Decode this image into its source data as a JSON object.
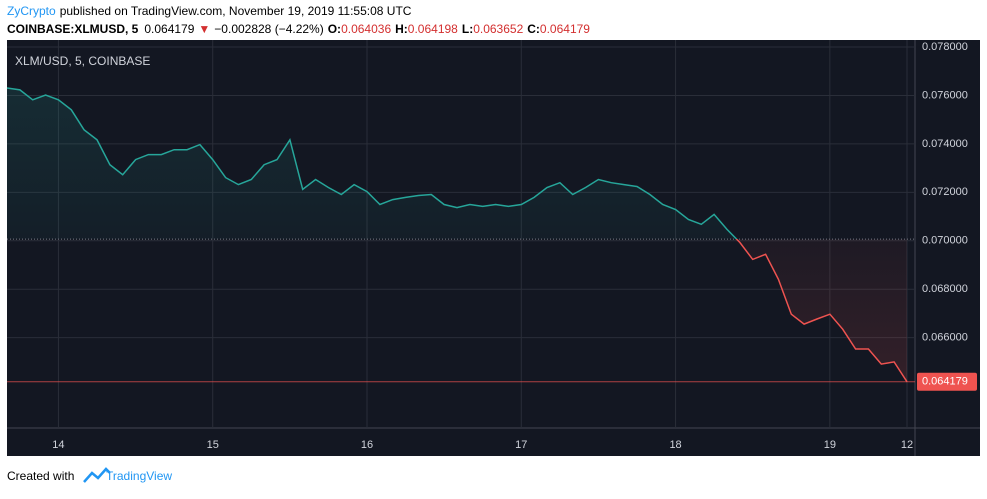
{
  "header": {
    "author": "ZyCrypto",
    "published": "published on TradingView.com, November 19, 2019 11:55:08 UTC",
    "symbol": "COINBASE:XLMUSD, 5",
    "price": "0.064179",
    "arrow": "▼",
    "change": "−0.002828 (−4.22%)",
    "o_label": "O:",
    "o": "0.064036",
    "h_label": "H:",
    "h": "0.064198",
    "l_label": "L:",
    "l": "0.063652",
    "c_label": "C:",
    "c": "0.064179"
  },
  "chart_data": {
    "type": "line",
    "title": "XLM/USD, 5, COINBASE",
    "categories": [
      null,
      null,
      null,
      null,
      "14",
      null,
      null,
      null,
      null,
      null,
      null,
      null,
      null,
      null,
      null,
      null,
      "15",
      null,
      null,
      null,
      null,
      null,
      null,
      null,
      null,
      null,
      null,
      null,
      "16",
      null,
      null,
      null,
      null,
      null,
      null,
      null,
      null,
      null,
      null,
      null,
      "17",
      null,
      null,
      null,
      null,
      null,
      null,
      null,
      null,
      null,
      null,
      null,
      "18",
      null,
      null,
      null,
      null,
      null,
      null,
      null,
      null,
      null,
      null,
      null,
      "19",
      null,
      null,
      null,
      null,
      null,
      "12"
    ],
    "series": [
      {
        "name": "XLM/USD",
        "color": "#26a69a",
        "color_below": "#ef5350",
        "values": [
          0.07631,
          0.07623,
          0.07582,
          0.07602,
          0.07582,
          0.07541,
          0.07458,
          0.07417,
          0.07314,
          0.07273,
          0.07335,
          0.07356,
          0.07356,
          0.07376,
          0.07376,
          0.07397,
          0.07335,
          0.07261,
          0.07232,
          0.07253,
          0.07314,
          0.07335,
          0.07417,
          0.07212,
          0.07253,
          0.0722,
          0.07191,
          0.07232,
          0.07203,
          0.0715,
          0.0717,
          0.07179,
          0.07187,
          0.07191,
          0.0715,
          0.07137,
          0.0715,
          0.07142,
          0.0715,
          0.07142,
          0.0715,
          0.07179,
          0.0722,
          0.0724,
          0.07191,
          0.0722,
          0.07253,
          0.0724,
          0.07232,
          0.07224,
          0.07191,
          0.0715,
          0.07129,
          0.07088,
          0.07068,
          0.07109,
          0.07047,
          0.06993,
          0.06923,
          0.06944,
          0.06841,
          0.06697,
          0.06656,
          0.06677,
          0.06697,
          0.06635,
          0.06553,
          0.06553,
          0.06491,
          0.065,
          0.064179
        ]
      }
    ],
    "baseline": 0.07007,
    "ylim": [
      0.06227,
      0.07829
    ],
    "yticks": [
      {
        "value": 0.066,
        "label": "0.066000"
      },
      {
        "value": 0.068,
        "label": "0.068000"
      },
      {
        "value": 0.07,
        "label": "0.070000"
      },
      {
        "value": 0.072,
        "label": "0.072000"
      },
      {
        "value": 0.074,
        "label": "0.074000"
      },
      {
        "value": 0.076,
        "label": "0.076000"
      },
      {
        "value": 0.078,
        "label": "0.078000"
      }
    ],
    "grid": true
  },
  "footer": {
    "created": "Created with",
    "brand": "TradingView"
  }
}
